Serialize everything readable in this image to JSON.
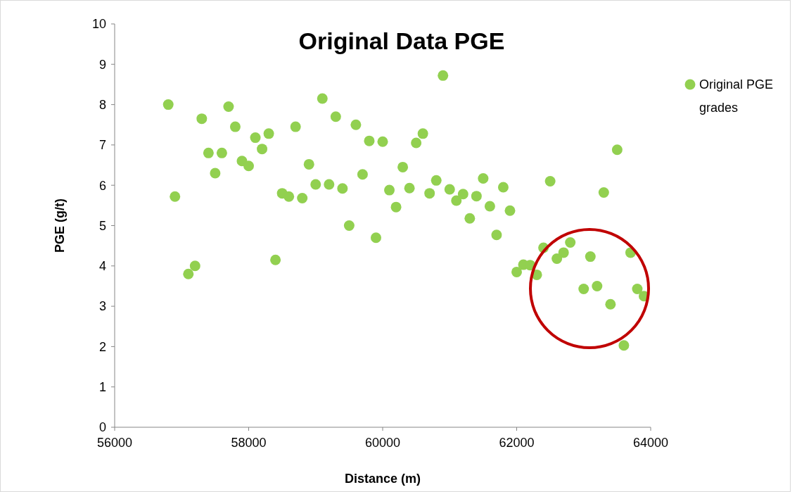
{
  "chart_data": {
    "type": "scatter",
    "title": "Original Data PGE",
    "xlabel": "Distance (m)",
    "ylabel": "PGE (g/t)",
    "xlim": [
      56000,
      64000
    ],
    "xticks": [
      56000,
      58000,
      60000,
      62000,
      64000
    ],
    "ylim": [
      0,
      10
    ],
    "yticks": [
      0,
      1,
      2,
      3,
      4,
      5,
      6,
      7,
      8,
      9,
      10
    ],
    "grid": false,
    "legend": "right",
    "marker": "circle",
    "series": [
      {
        "name": "Original PGE grades",
        "color": "#92d050",
        "x": [
          56800,
          56900,
          57100,
          57200,
          57300,
          57400,
          57500,
          57600,
          57700,
          57800,
          57900,
          58000,
          58100,
          58200,
          58300,
          58400,
          58500,
          58600,
          58700,
          58800,
          58900,
          59000,
          59100,
          59200,
          59300,
          59400,
          59500,
          59600,
          59700,
          59800,
          59900,
          60000,
          60100,
          60200,
          60300,
          60400,
          60500,
          60600,
          60700,
          60800,
          60900,
          61000,
          61100,
          61200,
          61300,
          61400,
          61500,
          61600,
          61700,
          61800,
          61900,
          62000,
          62100,
          62200,
          62300,
          62400,
          62500,
          62600,
          62700,
          62800,
          63000,
          63100,
          63200,
          63300,
          63400,
          63500,
          63600,
          63700,
          63800,
          63900
        ],
        "values": [
          8.0,
          5.72,
          3.8,
          4.0,
          7.65,
          6.8,
          6.3,
          6.8,
          7.95,
          7.45,
          6.6,
          6.48,
          7.18,
          6.9,
          7.28,
          4.15,
          5.8,
          5.72,
          7.45,
          5.68,
          6.52,
          6.02,
          8.15,
          6.02,
          7.7,
          5.92,
          5.0,
          7.5,
          6.27,
          7.1,
          4.7,
          7.08,
          5.88,
          5.46,
          6.45,
          5.93,
          7.05,
          7.28,
          5.8,
          6.12,
          8.72,
          5.9,
          5.62,
          5.78,
          5.18,
          5.73,
          6.17,
          5.48,
          4.77,
          5.95,
          5.37,
          3.85,
          4.03,
          4.02,
          3.78,
          4.45,
          6.1,
          4.18,
          4.33,
          4.58,
          3.43,
          4.23,
          3.5,
          5.82,
          3.05,
          6.88,
          2.03,
          4.33,
          3.43,
          3.25
        ]
      }
    ]
  }
}
